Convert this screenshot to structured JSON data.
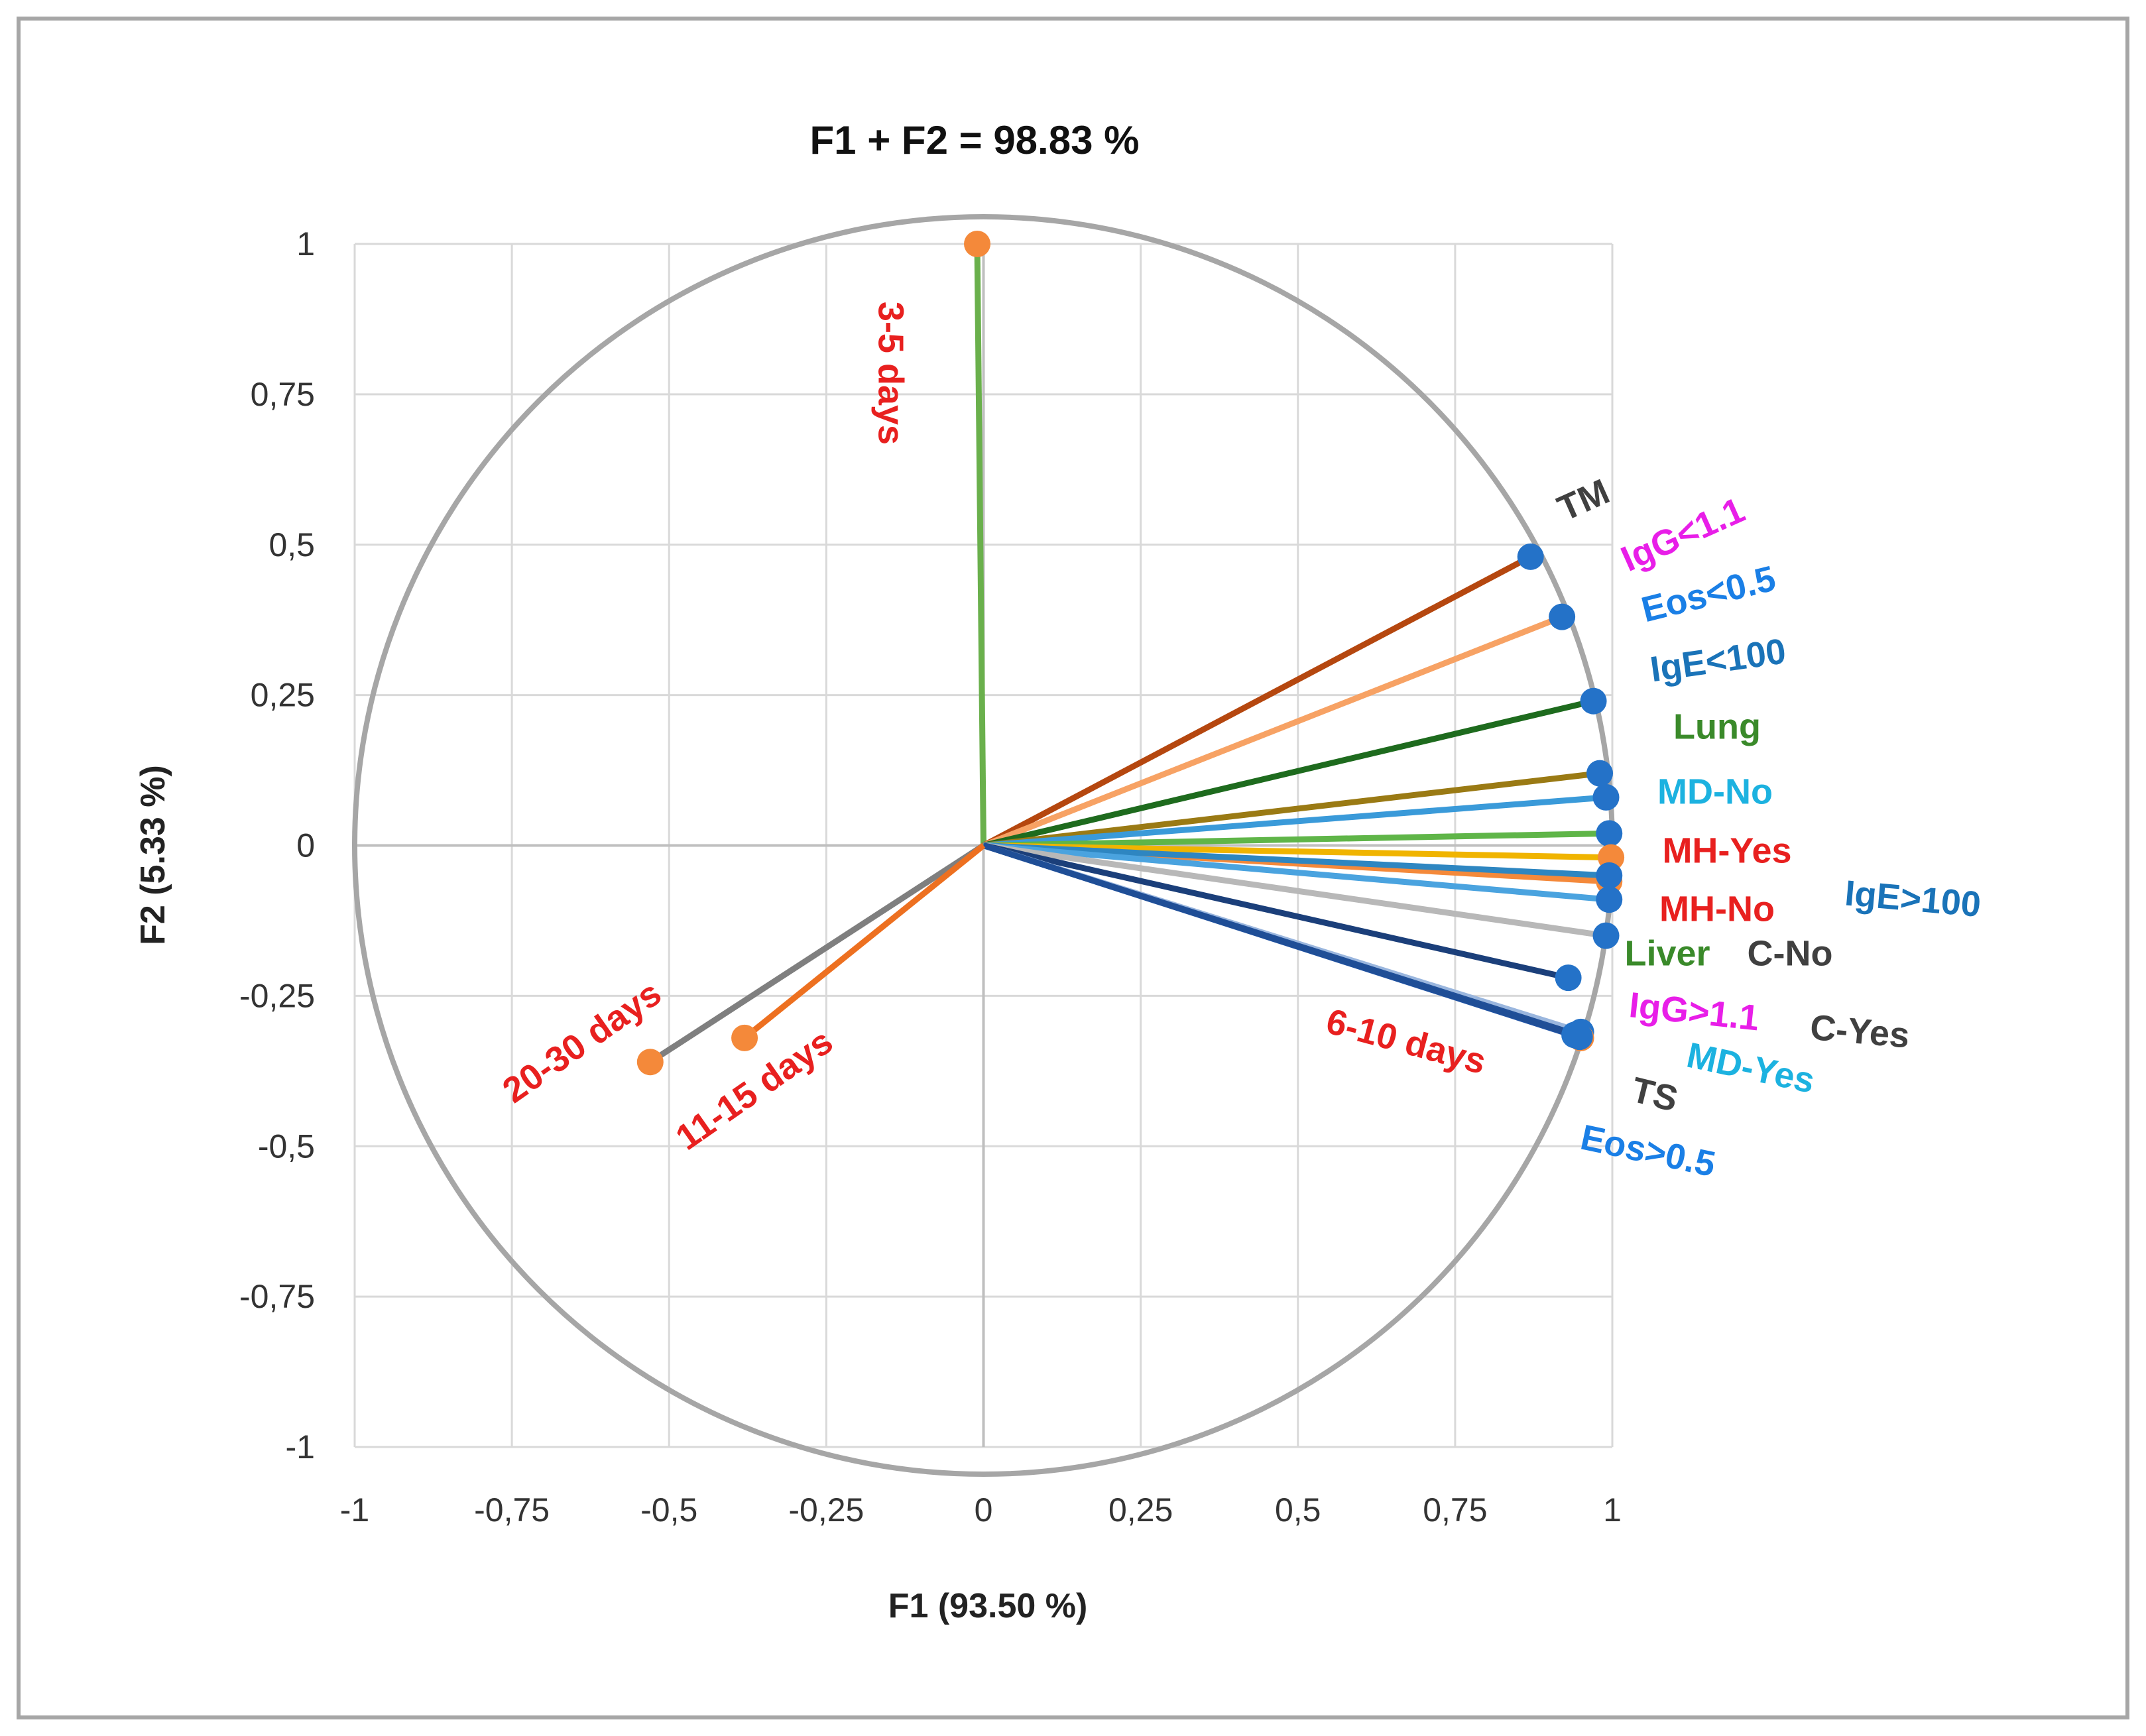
{
  "chart_data": {
    "type": "scatter",
    "subtype": "pca-correlation-circle",
    "title": "F1 + F2 = 98.83 %",
    "xlabel": "F1 (93.50 %)",
    "ylabel": "F2 (5.33 %)",
    "xlim": [
      -1,
      1
    ],
    "ylim": [
      -1,
      1
    ],
    "grid": true,
    "x_ticks": [
      "-1",
      "-0,75",
      "-0,5",
      "-0,25",
      "0",
      "0,25",
      "0,5",
      "0,75",
      "1"
    ],
    "y_ticks": [
      "1",
      "0,75",
      "0,5",
      "0,25",
      "0",
      "-0,25",
      "-0,5",
      "-0,75",
      "-1"
    ],
    "unit_circle": true,
    "vectors": [
      {
        "name": "3-5 days",
        "x": -0.01,
        "y": 1.0,
        "group": "time",
        "line_color": "#6ab04c",
        "marker_color": "#f4893a",
        "label_color": "#e8201f"
      },
      {
        "name": "TM",
        "x": 0.87,
        "y": 0.48,
        "group": "variable",
        "line_color": "#b5470f",
        "marker_color": "#2472c8",
        "label_color": "#404040"
      },
      {
        "name": "IgG<1.1",
        "x": 0.92,
        "y": 0.38,
        "group": "variable",
        "line_color": "#f7a264",
        "marker_color": "#2472c8",
        "label_color": "#e81ee8"
      },
      {
        "name": "Eos<0.5",
        "x": 0.97,
        "y": 0.24,
        "group": "variable",
        "line_color": "#1e6b1e",
        "marker_color": "#2472c8",
        "label_color": "#1a7fe6"
      },
      {
        "name": "IgE<100",
        "x": 0.98,
        "y": 0.12,
        "group": "variable",
        "line_color": "#9a7a14",
        "marker_color": "#2472c8",
        "label_color": "#1a73b8"
      },
      {
        "name": "Lung",
        "x": 0.99,
        "y": 0.08,
        "group": "variable",
        "line_color": "#3a9ad9",
        "marker_color": "#2472c8",
        "label_color": "#3a8a2a"
      },
      {
        "name": "MD-No",
        "x": 0.995,
        "y": 0.02,
        "group": "variable",
        "line_color": "#5fb548",
        "marker_color": "#2472c8",
        "label_color": "#1cb2e0"
      },
      {
        "name": "MH-Yes",
        "x": 0.998,
        "y": -0.02,
        "group": "variable",
        "line_color": "#f0b400",
        "marker_color": "#f4893a",
        "label_color": "#e8201f"
      },
      {
        "name": "MH-No",
        "x": 0.995,
        "y": -0.06,
        "group": "variable",
        "line_color": "#f4893a",
        "marker_color": "#f4893a",
        "label_color": "#e8201f"
      },
      {
        "name": "IgE>100",
        "x": 0.995,
        "y": -0.05,
        "group": "variable",
        "line_color": "#2e86c1",
        "marker_color": "#2472c8",
        "label_color": "#1a73b8"
      },
      {
        "name": "Liver",
        "x": 0.995,
        "y": -0.09,
        "group": "variable",
        "line_color": "#4aa3df",
        "marker_color": "#2472c8",
        "label_color": "#3a8a2a"
      },
      {
        "name": "C-No",
        "x": 0.99,
        "y": -0.15,
        "group": "variable",
        "line_color": "#b8b8b8",
        "marker_color": "#2472c8",
        "label_color": "#404040"
      },
      {
        "name": "IgG>1.1",
        "x": 0.93,
        "y": -0.22,
        "group": "variable",
        "line_color": "#1b3f7a",
        "marker_color": "#2472c8",
        "label_color": "#e81ee8"
      },
      {
        "name": "C-Yes",
        "x": 0.95,
        "y": -0.31,
        "group": "variable",
        "line_color": "#9ab6de",
        "marker_color": "#2472c8",
        "label_color": "#404040"
      },
      {
        "name": "MD-Yes",
        "x": 0.945,
        "y": -0.315,
        "group": "variable",
        "line_color": "#1f4e96",
        "marker_color": "#2472c8",
        "label_color": "#1cb2e0"
      },
      {
        "name": "6-10 days",
        "x": 0.95,
        "y": -0.32,
        "group": "time",
        "line_color": "#2255a8",
        "marker_color": "#f4893a",
        "label_color": "#e8201f"
      },
      {
        "name": "TS",
        "x": 0.94,
        "y": -0.315,
        "group": "variable",
        "line_color": "#2a5caa",
        "marker_color": "#2472c8",
        "label_color": "#404040"
      },
      {
        "name": "Eos>0.5",
        "x": 0.948,
        "y": -0.318,
        "group": "variable",
        "line_color": "#1f4e96",
        "marker_color": "#2472c8",
        "label_color": "#1a7fe6"
      },
      {
        "name": "20-30 days",
        "x": -0.53,
        "y": -0.36,
        "group": "time",
        "line_color": "#7f7f7f",
        "marker_color": "#f4893a",
        "label_color": "#e8201f"
      },
      {
        "name": "11-15 days",
        "x": -0.38,
        "y": -0.32,
        "group": "time",
        "line_color": "#ed7020",
        "marker_color": "#f4893a",
        "label_color": "#e8201f"
      }
    ]
  }
}
